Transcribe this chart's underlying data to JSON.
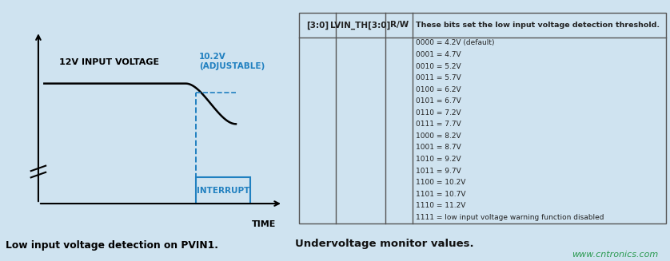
{
  "bg_color": "#cfe3f0",
  "left_panel": {
    "waveform_label": "12V INPUT VOLTAGE",
    "adjustable_label": "10.2V\n(ADJUSTABLE)",
    "interrupt_label": "INTERRUPT",
    "time_label": "TIME",
    "caption": "Low input voltage detection on PVIN1.",
    "line_color": "#000000",
    "blue_color": "#2080c0",
    "interrupt_box_color": "#2080c0"
  },
  "right_panel": {
    "col_headers": [
      "[3:0]",
      "LVIN_TH[3:0]",
      "R/W"
    ],
    "description_title": "These bits set the low input voltage detection threshold.",
    "rows": [
      "0000 = 4.2V (default)",
      "0001 = 4.7V",
      "0010 = 5.2V",
      "0011 = 5.7V",
      "0100 = 6.2V",
      "0101 = 6.7V",
      "0110 = 7.2V",
      "0111 = 7.7V",
      "1000 = 8.2V",
      "1001 = 8.7V",
      "1010 = 9.2V",
      "1011 = 9.7V",
      "1100 = 10.2V",
      "1101 = 10.7V",
      "1110 = 11.2V",
      "1111 = low input voltage warning function disabled"
    ],
    "caption": "Undervoltage monitor values.",
    "watermark": "www.cntronics.com",
    "border_color": "#555555",
    "text_color": "#222222"
  }
}
